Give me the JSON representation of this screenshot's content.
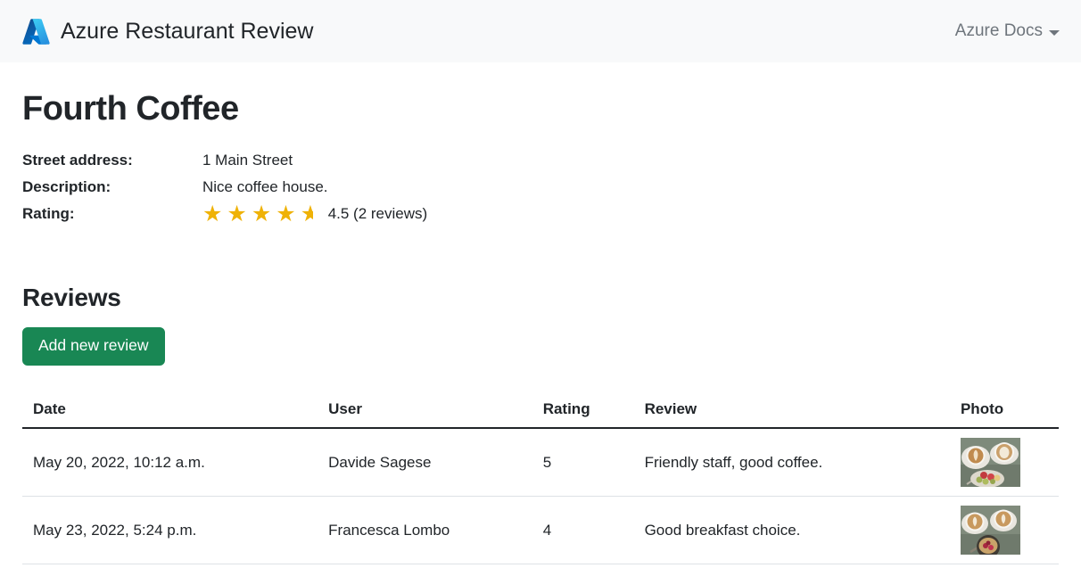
{
  "navbar": {
    "brand": "Azure Restaurant Review",
    "menu": "Azure Docs"
  },
  "restaurant": {
    "name": "Fourth Coffee",
    "fields": [
      {
        "label": "Street address:",
        "value": "1 Main Street"
      },
      {
        "label": "Description:",
        "value": "Nice coffee house."
      }
    ],
    "rating_label": "Rating:",
    "rating_value": 4.5,
    "stars_full": 4,
    "stars_half": 1,
    "rating_text": "4.5 (2 reviews)"
  },
  "reviews": {
    "heading": "Reviews",
    "add_button": "Add new review",
    "table": {
      "headers": [
        "Date",
        "User",
        "Rating",
        "Review",
        "Photo"
      ],
      "rows": [
        {
          "date": "May 20, 2022, 10:12 a.m.",
          "user": "Davide Sagese",
          "rating": "5",
          "review": "Friendly staff, good coffee.",
          "photo": "two latte cups with fruit plate"
        },
        {
          "date": "May 23, 2022, 5:24 p.m.",
          "user": "Francesca Lombo",
          "rating": "4",
          "review": "Good breakfast choice.",
          "photo": "two latte cups with breakfast bowl"
        }
      ]
    }
  },
  "colors": {
    "star": "#efb207",
    "button_green": "#198754",
    "navbar_bg": "#f8f9fa",
    "text": "#212529",
    "muted": "#6e757c",
    "row_border": "#dee2e6"
  }
}
